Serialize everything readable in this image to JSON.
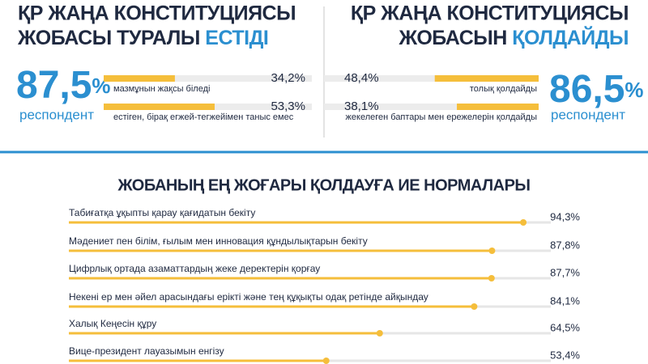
{
  "chart_data": [
    {
      "type": "bar",
      "orientation": "horizontal",
      "title": [
        "ҚР ЖАҢА КОНСТИТУЦИЯСЫ",
        "ЖОБАСЫ ТУРАЛЫ",
        "ЕСТІДІ"
      ],
      "headline_value": "87,5",
      "headline_unit": "%",
      "headline_caption": "респондент",
      "categories": [
        "мазмұнын жақсы біледі",
        "естіген, бірақ егжей-тегжейімен таныс емес"
      ],
      "values": [
        34.2,
        53.3
      ],
      "value_labels": [
        "34,2%",
        "53,3%"
      ],
      "xlim": [
        0,
        100
      ],
      "color": "#f5be3b",
      "track_color": "#ececec"
    },
    {
      "type": "bar",
      "orientation": "horizontal",
      "title": [
        "ҚР ЖАҢА КОНСТИТУЦИЯСЫ",
        "ЖОБАСЫН",
        "ҚОЛДАЙДЫ"
      ],
      "headline_value": "86,5",
      "headline_unit": "%",
      "headline_caption": "респондент",
      "categories": [
        "толық қолдайды",
        "жекелеген баптары мен ережелерін қолдайды"
      ],
      "values": [
        48.4,
        38.1
      ],
      "value_labels": [
        "48,4%",
        "38,1%"
      ],
      "xlim": [
        0,
        100
      ],
      "color": "#f5be3b",
      "track_color": "#ececec"
    },
    {
      "type": "bar",
      "orientation": "horizontal",
      "title": "ЖОБАНЫҢ ЕҢ ЖОҒАРЫ ҚОЛДАУҒА ИЕ НОРМАЛАРЫ",
      "categories": [
        "Табиғатқа ұқыпты қарау қағидатын бекіту",
        "Мәдениет пен білім, ғылым мен инновация құндылықтарын бекіту",
        "Цифрлық ортада азаматтардың жеке деректерін қорғау",
        "Некені ер мен әйел арасындағы ерікті және тең құқықты одақ ретінде айқындау",
        "Халық Кеңесін құру",
        "Вице-президент лауазымын енгізу"
      ],
      "values": [
        94.3,
        87.8,
        87.7,
        84.1,
        64.5,
        53.4
      ],
      "value_labels": [
        "94,3%",
        "87,8%",
        "87,7%",
        "84,1%",
        "64,5%",
        "53,4%"
      ],
      "xlim": [
        0,
        100
      ],
      "color": "#f5be3b",
      "track_color": "#e6e6e6"
    }
  ]
}
